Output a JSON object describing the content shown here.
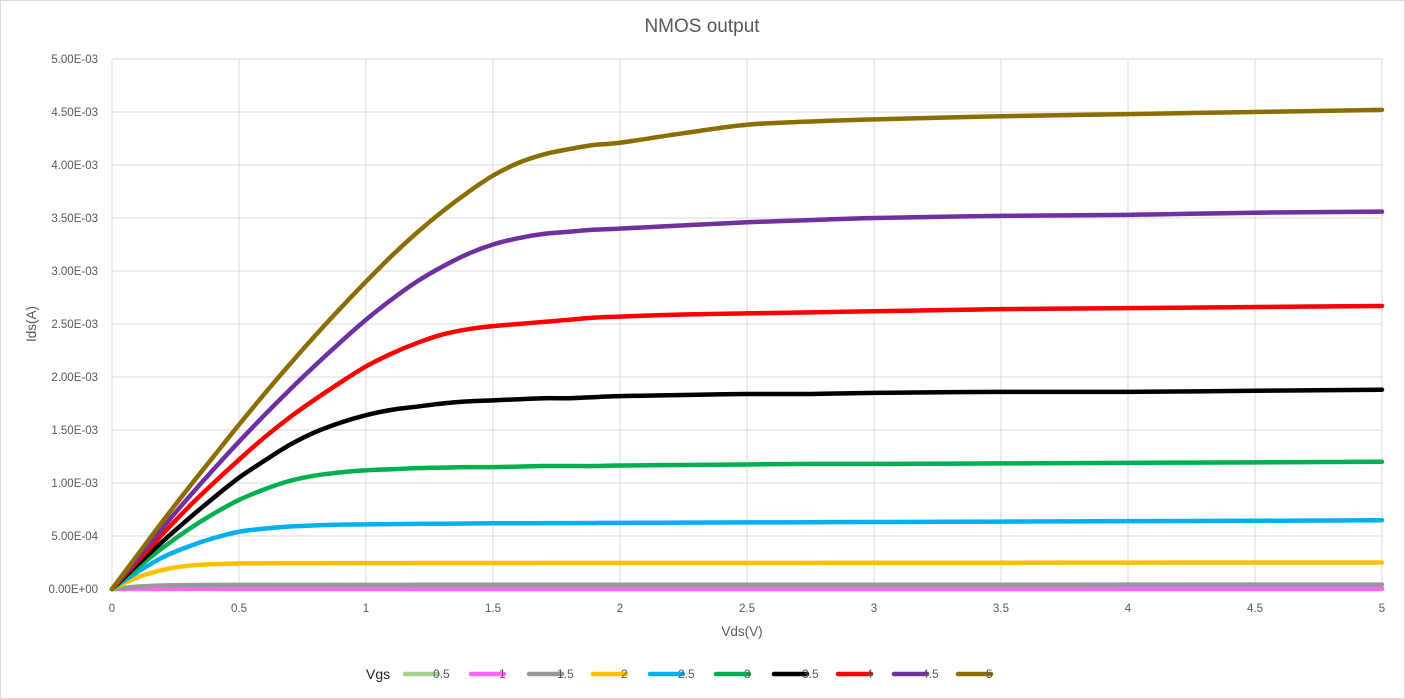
{
  "chart_data": {
    "type": "line",
    "title": "NMOS output",
    "xlabel": "Vds(V)",
    "ylabel": "Ids(A)",
    "xlim": [
      0,
      5
    ],
    "ylim": [
      0,
      0.005
    ],
    "x_ticks": [
      "0",
      "0.5",
      "1",
      "1.5",
      "2",
      "2.5",
      "3",
      "3.5",
      "4",
      "4.5",
      "5"
    ],
    "y_ticks": [
      "0.00E+00",
      "5.00E-04",
      "1.00E-03",
      "1.50E-03",
      "2.00E-03",
      "2.50E-03",
      "3.00E-03",
      "3.50E-03",
      "4.00E-03",
      "4.50E-03",
      "5.00E-03"
    ],
    "grid": true,
    "legend_position": "bottom",
    "legend_title": "Vgs",
    "x": [
      0,
      0.1,
      0.2,
      0.3,
      0.4,
      0.5,
      0.6,
      0.7,
      0.8,
      0.9,
      1.0,
      1.1,
      1.2,
      1.3,
      1.4,
      1.5,
      1.6,
      1.7,
      1.8,
      1.9,
      2.0,
      2.25,
      2.5,
      2.75,
      3.0,
      3.5,
      4.0,
      4.5,
      5.0
    ],
    "series": [
      {
        "name": "0.5",
        "color": "#a9d18e",
        "values": [
          0,
          5e-07,
          1e-06,
          1.2e-06,
          1.3e-06,
          1.3e-06,
          1.3e-06,
          1.3e-06,
          1.3e-06,
          1.3e-06,
          1.3e-06,
          1.3e-06,
          1.3e-06,
          1.3e-06,
          1.3e-06,
          1.3e-06,
          1.3e-06,
          1.3e-06,
          1.3e-06,
          1.3e-06,
          1.3e-06,
          1.3e-06,
          1.3e-06,
          1.3e-06,
          1.3e-06,
          1.3e-06,
          1.3e-06,
          1.3e-06,
          1.3e-06
        ]
      },
      {
        "name": "1",
        "color": "#ff66ff",
        "values": [
          0,
          1e-06,
          1.5e-06,
          1.8e-06,
          1.9e-06,
          2e-06,
          2e-06,
          2e-06,
          2e-06,
          2e-06,
          2e-06,
          2e-06,
          2e-06,
          2e-06,
          2e-06,
          2e-06,
          2e-06,
          2e-06,
          2e-06,
          2e-06,
          2e-06,
          2e-06,
          2e-06,
          2e-06,
          2e-06,
          2e-06,
          2e-06,
          2e-06,
          2e-06
        ]
      },
      {
        "name": "1.5",
        "color": "#999999",
        "values": [
          0,
          2.2e-05,
          3.3e-05,
          3.7e-05,
          3.8e-05,
          3.9e-05,
          3.9e-05,
          3.9e-05,
          3.9e-05,
          3.9e-05,
          3.9e-05,
          3.9e-05,
          4e-05,
          4e-05,
          4e-05,
          4e-05,
          4e-05,
          4e-05,
          4e-05,
          4e-05,
          4e-05,
          4e-05,
          4e-05,
          4e-05,
          4e-05,
          4e-05,
          4.1e-05,
          4.1e-05,
          4.1e-05
        ]
      },
      {
        "name": "2",
        "color": "#ffc000",
        "values": [
          0,
          0.00011,
          0.00018,
          0.00022,
          0.000235,
          0.00024,
          0.000242,
          0.000243,
          0.000243,
          0.000244,
          0.000244,
          0.000244,
          0.000245,
          0.000245,
          0.000245,
          0.000245,
          0.000245,
          0.000246,
          0.000246,
          0.000246,
          0.000246,
          0.000246,
          0.000247,
          0.000247,
          0.000248,
          0.000248,
          0.000249,
          0.00025,
          0.00025
        ]
      },
      {
        "name": "2.5",
        "color": "#00b0f0",
        "values": [
          0,
          0.00016,
          0.0003,
          0.0004,
          0.00048,
          0.00054,
          0.00057,
          0.00059,
          0.0006,
          0.000607,
          0.00061,
          0.000612,
          0.000614,
          0.000616,
          0.000618,
          0.00062,
          0.00062,
          0.000621,
          0.000622,
          0.000623,
          0.000624,
          0.000626,
          0.000628,
          0.00063,
          0.000632,
          0.000636,
          0.00064,
          0.000644,
          0.000648
        ]
      },
      {
        "name": "3",
        "color": "#00b050",
        "values": [
          0,
          0.0002,
          0.00039,
          0.00056,
          0.00071,
          0.00084,
          0.00094,
          0.00102,
          0.00107,
          0.0011,
          0.00112,
          0.00113,
          0.00114,
          0.001145,
          0.00115,
          0.00115,
          0.001155,
          0.00116,
          0.00116,
          0.00116,
          0.001165,
          0.00117,
          0.001175,
          0.00118,
          0.00118,
          0.001185,
          0.00119,
          0.001195,
          0.0012
        ]
      },
      {
        "name": "3.5",
        "color": "#000000",
        "values": [
          0,
          0.00023,
          0.00045,
          0.00066,
          0.00086,
          0.00105,
          0.00121,
          0.00136,
          0.00148,
          0.00157,
          0.00164,
          0.00169,
          0.00172,
          0.00175,
          0.00177,
          0.00178,
          0.00179,
          0.0018,
          0.0018,
          0.00181,
          0.00182,
          0.00183,
          0.00184,
          0.00184,
          0.00185,
          0.00186,
          0.00186,
          0.00187,
          0.00188
        ]
      },
      {
        "name": "4",
        "color": "#ff0000",
        "values": [
          0,
          0.00026,
          0.00052,
          0.00077,
          0.001,
          0.00122,
          0.00143,
          0.00162,
          0.00179,
          0.00195,
          0.0021,
          0.00222,
          0.00232,
          0.0024,
          0.00245,
          0.00248,
          0.0025,
          0.00252,
          0.00254,
          0.00256,
          0.00257,
          0.00259,
          0.0026,
          0.00261,
          0.00262,
          0.00264,
          0.00265,
          0.00266,
          0.00267
        ]
      },
      {
        "name": "4.5",
        "color": "#7030a0",
        "values": [
          0,
          0.00029,
          0.00058,
          0.00086,
          0.00113,
          0.00139,
          0.00164,
          0.00188,
          0.00211,
          0.00233,
          0.00254,
          0.00273,
          0.0029,
          0.00304,
          0.00316,
          0.00325,
          0.00331,
          0.00335,
          0.00337,
          0.00339,
          0.0034,
          0.00343,
          0.00346,
          0.00348,
          0.0035,
          0.00352,
          0.00353,
          0.00355,
          0.00356
        ]
      },
      {
        "name": "5",
        "color": "#8c6d00",
        "values": [
          0,
          0.00032,
          0.00064,
          0.00095,
          0.00125,
          0.00155,
          0.00184,
          0.00212,
          0.00239,
          0.00265,
          0.0029,
          0.00314,
          0.00336,
          0.00356,
          0.00374,
          0.0039,
          0.00402,
          0.0041,
          0.00415,
          0.00419,
          0.00421,
          0.0043,
          0.00438,
          0.00441,
          0.00443,
          0.00446,
          0.00448,
          0.0045,
          0.00452
        ]
      }
    ]
  }
}
